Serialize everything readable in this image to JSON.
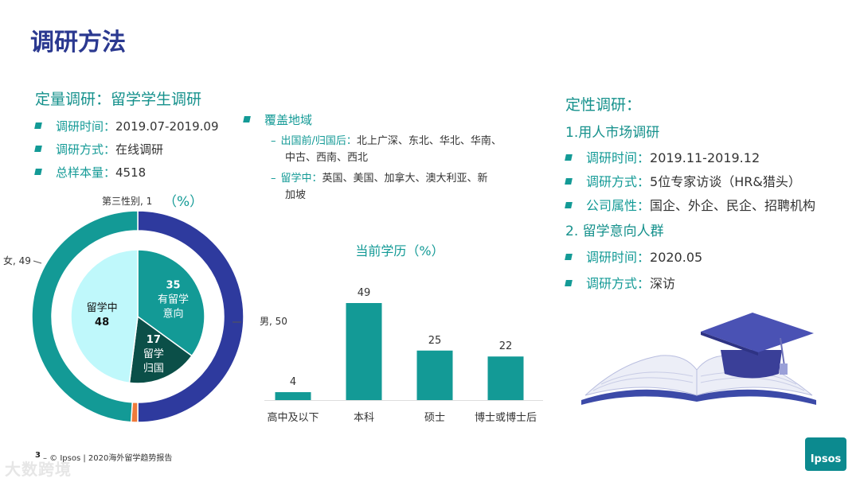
{
  "page": {
    "title": "调研方法",
    "page_number": "3",
    "footer": "–  © Ipsos | 2020海外留学趋势报告",
    "logo": "Ipsos",
    "watermark": "大数跨境"
  },
  "quant": {
    "heading": "定量调研：留学学生调研",
    "items": [
      {
        "label": "调研时间：",
        "value": "2019.07-2019.09"
      },
      {
        "label": "调研方式：",
        "value": "在线调研"
      },
      {
        "label": "总样本量：",
        "value": "4518"
      }
    ]
  },
  "coverage": {
    "heading": "覆盖地域",
    "lines": [
      {
        "label": "出国前/归国后：",
        "value": "北上广深、东北、华北、华南、",
        "value2": "中古、西南、西北"
      },
      {
        "label": "留学中：",
        "value": "英国、美国、加拿大、澳大利亚、新",
        "value2": "加坡"
      }
    ]
  },
  "qual": {
    "heading": "定性调研：",
    "sub1": "1.用人市场调研",
    "items1": [
      {
        "label": "调研时间：",
        "value": "2019.11-2019.12"
      },
      {
        "label": "调研方式：",
        "value": "5位专家访谈（HR&猎头）"
      },
      {
        "label": "公司属性：",
        "value": "国企、外企、民企、招聘机构"
      }
    ],
    "sub2": "2. 留学意向人群",
    "items2": [
      {
        "label": "调研时间：",
        "value": "2020.05"
      },
      {
        "label": "调研方式：",
        "value": "深访"
      }
    ]
  },
  "chart_data": [
    {
      "type": "pie",
      "title": "（%）",
      "outer": {
        "labels": [
          "男",
          "第三性别",
          "女"
        ],
        "values": [
          50,
          1,
          49
        ],
        "label_text": [
          "男, 50",
          "第三性别, 1",
          "女, 49"
        ],
        "colors": [
          "#2e3a9e",
          "#ef7b3b",
          "#139a96"
        ]
      },
      "inner": {
        "slices": [
          {
            "name": "有留学意向",
            "value": 35,
            "text": [
              "35",
              "有留学",
              "意向"
            ],
            "color": "#139a96"
          },
          {
            "name": "留学归国",
            "value": 17,
            "text": [
              "17",
              "留学",
              "归国"
            ],
            "color": "#0b4f48"
          },
          {
            "name": "留学中",
            "value": 48,
            "text": [
              "留学中",
              "48"
            ],
            "color": "#bff8fb"
          }
        ]
      }
    },
    {
      "type": "bar",
      "title": "当前学历（%）",
      "categories": [
        "高中及以下",
        "本科",
        "硕士",
        "博士或博士后"
      ],
      "values": [
        4,
        49,
        25,
        22
      ],
      "color": "#139a96",
      "ylim": [
        0,
        49
      ]
    }
  ]
}
